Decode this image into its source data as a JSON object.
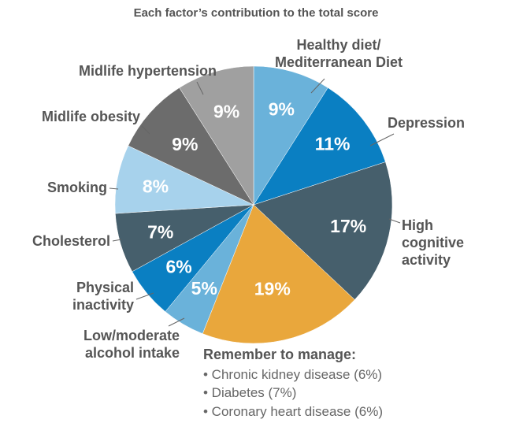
{
  "chart_data": {
    "type": "pie",
    "title": "Each factor’s contribution to the total score",
    "slices": [
      {
        "label": "Healthy diet/\nMediterranean Diet",
        "value": 9,
        "display": "9%",
        "color": "#6ab2da"
      },
      {
        "label": "Depression",
        "value": 11,
        "display": "11%",
        "color": "#0a7fc2"
      },
      {
        "label": "High\ncognitive\nactivity",
        "value": 17,
        "display": "17%",
        "color": "#465f6c"
      },
      {
        "label": "",
        "value": 19,
        "display": "19%",
        "color": "#e9a73c"
      },
      {
        "label": "Low/moderate\nalcohol intake",
        "value": 5,
        "display": "5%",
        "color": "#6ab2da"
      },
      {
        "label": "Physical\ninactivity",
        "value": 6,
        "display": "6%",
        "color": "#0a7fc2"
      },
      {
        "label": "Cholesterol",
        "value": 7,
        "display": "7%",
        "color": "#465f6c"
      },
      {
        "label": "Smoking",
        "value": 8,
        "display": "8%",
        "color": "#a7d2ec"
      },
      {
        "label": "Midlife obesity",
        "value": 9,
        "display": "9%",
        "color": "#6c6c6c"
      },
      {
        "label": "Midlife hypertension",
        "value": 9,
        "display": "9%",
        "color": "#a0a0a0"
      }
    ]
  },
  "remember": {
    "title": "Remember to manage:",
    "items": [
      "• Chronic kidney disease (6%)",
      "• Diabetes (7%)",
      "• Coronary heart disease (6%)"
    ]
  }
}
